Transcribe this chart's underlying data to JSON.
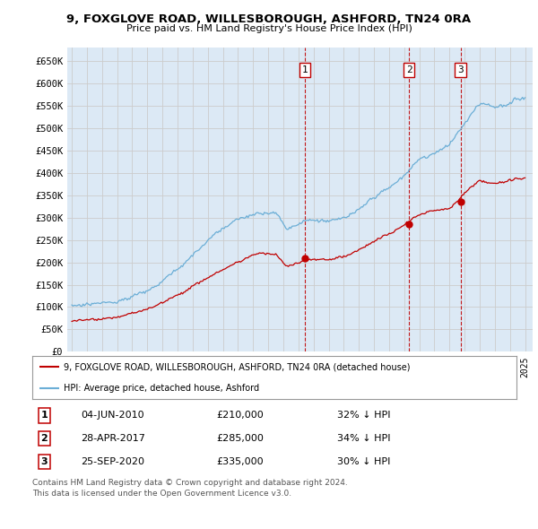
{
  "title": "9, FOXGLOVE ROAD, WILLESBOROUGH, ASHFORD, TN24 0RA",
  "subtitle": "Price paid vs. HM Land Registry's House Price Index (HPI)",
  "ylim": [
    0,
    680000
  ],
  "yticks": [
    0,
    50000,
    100000,
    150000,
    200000,
    250000,
    300000,
    350000,
    400000,
    450000,
    500000,
    550000,
    600000,
    650000
  ],
  "ytick_labels": [
    "£0",
    "£50K",
    "£100K",
    "£150K",
    "£200K",
    "£250K",
    "£300K",
    "£350K",
    "£400K",
    "£450K",
    "£500K",
    "£550K",
    "£600K",
    "£650K"
  ],
  "hpi_color": "#6baed6",
  "price_color": "#c00000",
  "grid_color": "#cccccc",
  "background_color": "#ffffff",
  "plot_bg_color": "#dce9f5",
  "sales": [
    {
      "date_num": 2010.42,
      "price": 210000,
      "label": "1",
      "date_str": "04-JUN-2010",
      "pct": "32%"
    },
    {
      "date_num": 2017.32,
      "price": 285000,
      "label": "2",
      "date_str": "28-APR-2017",
      "pct": "34%"
    },
    {
      "date_num": 2020.73,
      "price": 335000,
      "label": "3",
      "date_str": "25-SEP-2020",
      "pct": "30%"
    }
  ],
  "legend_line1": "9, FOXGLOVE ROAD, WILLESBOROUGH, ASHFORD, TN24 0RA (detached house)",
  "legend_line2": "HPI: Average price, detached house, Ashford",
  "footer1": "Contains HM Land Registry data © Crown copyright and database right 2024.",
  "footer2": "This data is licensed under the Open Government Licence v3.0.",
  "xstart": 1995,
  "xend": 2025
}
